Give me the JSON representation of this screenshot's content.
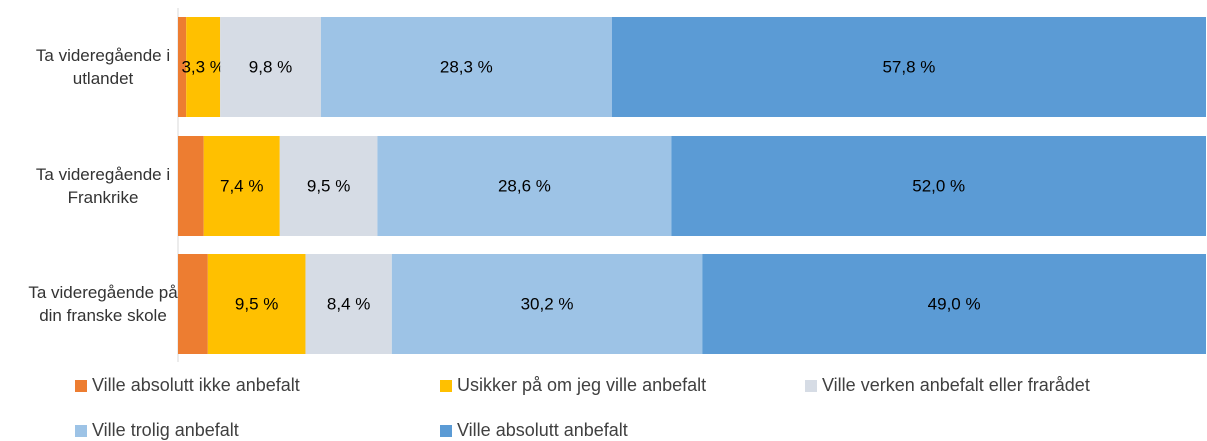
{
  "chart_data": {
    "type": "stacked-bar-horizontal",
    "categories": [
      "Ta videregående i utlandet",
      "Ta videregående i Frankrike",
      "Ta videregående på din franske skole"
    ],
    "xlim": [
      0,
      100
    ],
    "series": [
      {
        "name": "Ville absolutt ikke anbefalt",
        "color": "#ed7d31",
        "values": [
          0.8,
          2.5,
          2.9
        ]
      },
      {
        "name": "Usikker på om jeg ville anbefalt",
        "color": "#ffc000",
        "values": [
          3.3,
          7.4,
          9.5
        ],
        "value_labels": [
          "3,3 %",
          "7,4 %",
          "9,5 %"
        ]
      },
      {
        "name": "Ville verken anbefalt eller frarådet",
        "color": "#d6dce5",
        "values": [
          9.8,
          9.5,
          8.4
        ],
        "value_labels": [
          "9,8 %",
          "9,5 %",
          "8,4 %"
        ]
      },
      {
        "name": "Ville trolig anbefalt",
        "color": "#9dc3e6",
        "values": [
          28.3,
          28.6,
          30.2
        ],
        "value_labels": [
          "28,3 %",
          "28,6 %",
          "30,2 %"
        ]
      },
      {
        "name": "Ville absolutt anbefalt",
        "color": "#5b9bd5",
        "values": [
          57.8,
          52.0,
          49.0
        ],
        "value_labels": [
          "57,8 %",
          "52,0 %",
          "49,0 %"
        ]
      }
    ]
  }
}
